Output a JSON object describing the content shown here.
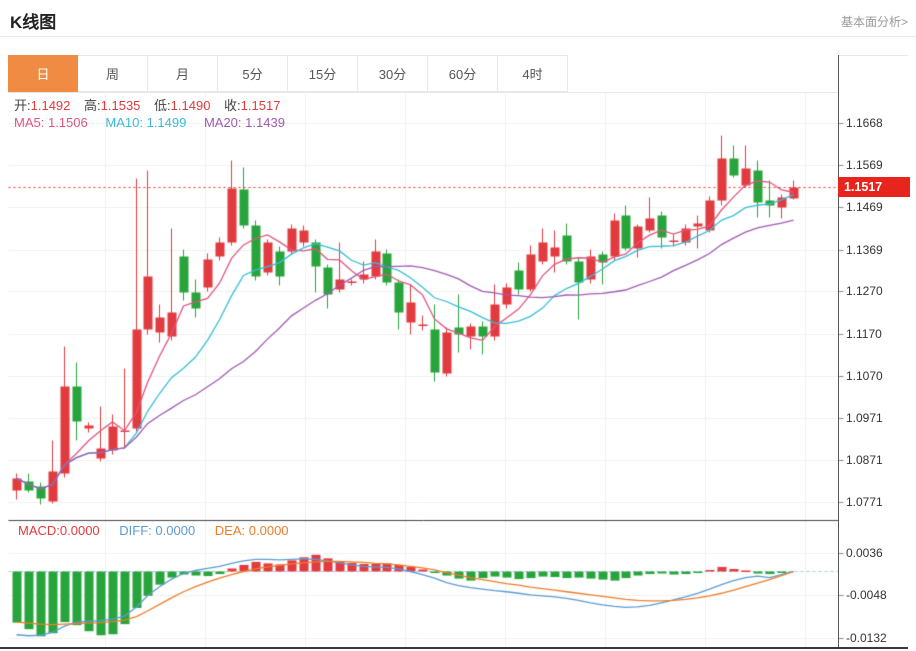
{
  "header": {
    "title": "K线图",
    "link_label": "基本面分析>"
  },
  "tabs": {
    "items": [
      "日",
      "周",
      "月",
      "5分",
      "15分",
      "30分",
      "60分",
      "4时"
    ],
    "active": "日"
  },
  "legend": {
    "open_label": "开:",
    "open_value": "1.1492",
    "high_label": "高:",
    "high_value": "1.1535",
    "low_label": "低:",
    "low_value": "1.1490",
    "close_label": "收:",
    "close_value": "1.1517"
  },
  "ma_legend": {
    "ma5_label": "MA5:",
    "ma5_value": "1.1506",
    "ma10_label": "MA10:",
    "ma10_value": "1.1499",
    "ma20_label": "MA20:",
    "ma20_value": "1.1439"
  },
  "macd_legend": {
    "macd_label": "MACD:",
    "macd_value": "0.0000",
    "diff_label": "DIFF:",
    "diff_value": "0.0000",
    "dea_label": "DEA:",
    "dea_value": "0.0000"
  },
  "colors": {
    "up": "#e23b3f",
    "down": "#28a43c",
    "ma5": "#e0557e",
    "ma10": "#36bdd8",
    "ma20": "#a05ab4",
    "diff_line": "#5b9bd5",
    "dea_line": "#ef7d28",
    "zero_dash": "#9fcde8",
    "price_line": "#ff2d2d",
    "badge_bg": "#e8251d",
    "tab_active_bg": "#ef8b43",
    "ohlc_value": "#e23b3c",
    "grid": "#f0f0f0",
    "axis": "#555"
  },
  "chart_data": {
    "type": "candlestick",
    "title": "K线图",
    "panes": [
      "price",
      "macd"
    ],
    "legend_position": "top-left-overlay",
    "grid": true,
    "y_axis": {
      "labels": [
        "1.1668",
        "1.1569",
        "1.1469",
        "1.1369",
        "1.1270",
        "1.1170",
        "1.1070",
        "1.0971",
        "1.0871",
        "1.0771"
      ],
      "min": 1.0741,
      "max": 1.1735
    },
    "last_price": "1.1517",
    "price_line_value": 1.1517,
    "ma_periods": [
      5,
      10,
      20
    ],
    "candles": [
      [
        1.08,
        1.084,
        1.078,
        1.0829
      ],
      [
        1.0822,
        1.0841,
        1.0795,
        1.0801
      ],
      [
        1.081,
        1.0818,
        1.0768,
        1.0782
      ],
      [
        1.0775,
        1.0918,
        1.077,
        1.0845
      ],
      [
        1.084,
        1.1141,
        1.0832,
        1.1047
      ],
      [
        1.1047,
        1.1104,
        1.0918,
        1.0963
      ],
      [
        1.0948,
        1.0962,
        1.0938,
        1.0953
      ],
      [
        1.0876,
        1.1,
        1.0868,
        1.0899
      ],
      [
        1.0894,
        1.0981,
        1.0885,
        1.0951
      ],
      [
        1.0941,
        1.109,
        1.09,
        1.0943
      ],
      [
        1.0946,
        1.1538,
        1.094,
        1.1181
      ],
      [
        1.1181,
        1.1558,
        1.117,
        1.1306
      ],
      [
        1.1174,
        1.124,
        1.115,
        1.1209
      ],
      [
        1.1165,
        1.1421,
        1.1155,
        1.1221
      ],
      [
        1.1353,
        1.137,
        1.125,
        1.1268
      ],
      [
        1.1268,
        1.13,
        1.121,
        1.123
      ],
      [
        1.128,
        1.136,
        1.127,
        1.1346
      ],
      [
        1.1353,
        1.14,
        1.1345,
        1.1388
      ],
      [
        1.1388,
        1.1582,
        1.138,
        1.1515
      ],
      [
        1.1513,
        1.1565,
        1.142,
        1.1428
      ],
      [
        1.1428,
        1.144,
        1.1298,
        1.1306
      ],
      [
        1.1315,
        1.1395,
        1.1308,
        1.1388
      ],
      [
        1.1365,
        1.1378,
        1.1285,
        1.1306
      ],
      [
        1.1365,
        1.143,
        1.1358,
        1.1421
      ],
      [
        1.1386,
        1.1428,
        1.1378,
        1.1416
      ],
      [
        1.1386,
        1.1395,
        1.1268,
        1.133
      ],
      [
        1.1327,
        1.1335,
        1.123,
        1.1263
      ],
      [
        1.1275,
        1.1386,
        1.1268,
        1.1299
      ],
      [
        1.1294,
        1.13,
        1.1285,
        1.1294
      ],
      [
        1.1299,
        1.1341,
        1.129,
        1.1311
      ],
      [
        1.1306,
        1.1395,
        1.13,
        1.1365
      ],
      [
        1.1362,
        1.137,
        1.1285,
        1.1292
      ],
      [
        1.1292,
        1.13,
        1.1181,
        1.1221
      ],
      [
        1.1198,
        1.1287,
        1.117,
        1.1245
      ],
      [
        1.1193,
        1.1215,
        1.118,
        1.1193
      ],
      [
        1.1181,
        1.124,
        1.1059,
        1.108
      ],
      [
        1.1078,
        1.1185,
        1.107,
        1.1175
      ],
      [
        1.1186,
        1.1264,
        1.1127,
        1.117
      ],
      [
        1.1165,
        1.1195,
        1.1135,
        1.1188
      ],
      [
        1.1188,
        1.12,
        1.1122,
        1.1165
      ],
      [
        1.1165,
        1.1287,
        1.1155,
        1.124
      ],
      [
        1.124,
        1.129,
        1.123,
        1.128
      ],
      [
        1.132,
        1.134,
        1.1265,
        1.1275
      ],
      [
        1.1275,
        1.138,
        1.127,
        1.1358
      ],
      [
        1.1341,
        1.1421,
        1.1335,
        1.1388
      ],
      [
        1.1353,
        1.1416,
        1.1315,
        1.1376
      ],
      [
        1.1404,
        1.1433,
        1.1335,
        1.1341
      ],
      [
        1.1341,
        1.135,
        1.1205,
        1.1292
      ],
      [
        1.1299,
        1.137,
        1.129,
        1.1353
      ],
      [
        1.1358,
        1.1365,
        1.1287,
        1.1339
      ],
      [
        1.1353,
        1.1456,
        1.1345,
        1.144
      ],
      [
        1.1452,
        1.1475,
        1.1368,
        1.1374
      ],
      [
        1.1374,
        1.143,
        1.1352,
        1.1424
      ],
      [
        1.1416,
        1.1494,
        1.141,
        1.1445
      ],
      [
        1.1452,
        1.146,
        1.1374,
        1.1398
      ],
      [
        1.139,
        1.1405,
        1.1378,
        1.1393
      ],
      [
        1.1388,
        1.143,
        1.138,
        1.1421
      ],
      [
        1.1424,
        1.1452,
        1.1374,
        1.1433
      ],
      [
        1.1416,
        1.1497,
        1.141,
        1.1487
      ],
      [
        1.1487,
        1.164,
        1.1475,
        1.1586
      ],
      [
        1.1586,
        1.1616,
        1.1542,
        1.1546
      ],
      [
        1.1522,
        1.1616,
        1.1518,
        1.1562
      ],
      [
        1.1557,
        1.1581,
        1.1447,
        1.1482
      ],
      [
        1.1487,
        1.1534,
        1.1447,
        1.1475
      ],
      [
        1.1471,
        1.15,
        1.1445,
        1.1494
      ],
      [
        1.1492,
        1.1535,
        1.149,
        1.1517
      ]
    ],
    "macd": {
      "y_labels": [
        "0.0036",
        "-0.0048",
        "-0.0132"
      ],
      "diff": [
        -0.0125,
        -0.0127,
        -0.0126,
        -0.012,
        -0.0108,
        -0.01,
        -0.0098,
        -0.0097,
        -0.0094,
        -0.0088,
        -0.007,
        -0.0048,
        -0.003,
        -0.0015,
        -0.0004,
        0.0002,
        0.0006,
        0.001,
        0.0016,
        0.0021,
        0.0024,
        0.0024,
        0.0023,
        0.0024,
        0.0025,
        0.0024,
        0.0021,
        0.0017,
        0.0013,
        0.001,
        0.0009,
        0.0008,
        0.0005,
        0.0,
        -0.0006,
        -0.0013,
        -0.0022,
        -0.0028,
        -0.0032,
        -0.0035,
        -0.0038,
        -0.004,
        -0.0043,
        -0.0046,
        -0.0048,
        -0.005,
        -0.0053,
        -0.0057,
        -0.0062,
        -0.0066,
        -0.0069,
        -0.0071,
        -0.007,
        -0.0067,
        -0.0062,
        -0.0056,
        -0.005,
        -0.0043,
        -0.0035,
        -0.0026,
        -0.0018,
        -0.0012,
        -0.0009,
        -0.0012,
        -0.0006,
        0.0
      ],
      "dea": [
        -0.01,
        -0.0102,
        -0.0104,
        -0.0105,
        -0.0104,
        -0.0103,
        -0.0102,
        -0.0101,
        -0.0099,
        -0.0096,
        -0.0089,
        -0.0078,
        -0.0065,
        -0.0052,
        -0.004,
        -0.003,
        -0.0021,
        -0.0013,
        -0.0006,
        0.0,
        0.0005,
        0.0009,
        0.0012,
        0.0015,
        0.0017,
        0.0019,
        0.002,
        0.002,
        0.0019,
        0.0018,
        0.0016,
        0.0015,
        0.0013,
        0.001,
        0.0007,
        0.0003,
        -0.0002,
        -0.0007,
        -0.0012,
        -0.0016,
        -0.002,
        -0.0024,
        -0.0027,
        -0.0031,
        -0.0034,
        -0.0037,
        -0.004,
        -0.0043,
        -0.0046,
        -0.0049,
        -0.0052,
        -0.0055,
        -0.0057,
        -0.0058,
        -0.0058,
        -0.0057,
        -0.0055,
        -0.0052,
        -0.0048,
        -0.0043,
        -0.0037,
        -0.003,
        -0.0023,
        -0.0016,
        -0.0008,
        0.0
      ],
      "hist": [
        -0.0101,
        -0.0114,
        -0.0128,
        -0.0122,
        -0.01,
        -0.0106,
        -0.0118,
        -0.0126,
        -0.0124,
        -0.0104,
        -0.0072,
        -0.0048,
        -0.0026,
        -0.0012,
        -0.0006,
        -0.0008,
        -0.0009,
        -0.0005,
        0.0006,
        0.0013,
        0.0019,
        0.0016,
        0.0014,
        0.0022,
        0.0028,
        0.0033,
        0.0026,
        0.002,
        0.0017,
        0.0015,
        0.0015,
        0.0016,
        0.0013,
        0.0009,
        0.0004,
        -0.0003,
        -0.0008,
        -0.0014,
        -0.0018,
        -0.0013,
        -0.001,
        -0.0012,
        -0.0015,
        -0.0013,
        -0.001,
        -0.0011,
        -0.0013,
        -0.0012,
        -0.0014,
        -0.0016,
        -0.0018,
        -0.0013,
        -0.0008,
        -0.0005,
        -0.0004,
        -0.0006,
        -0.0005,
        -0.0003,
        0.0003,
        0.0009,
        0.0005,
        0.0002,
        -0.0004,
        -0.0005,
        -0.0002,
        0.0
      ]
    }
  }
}
